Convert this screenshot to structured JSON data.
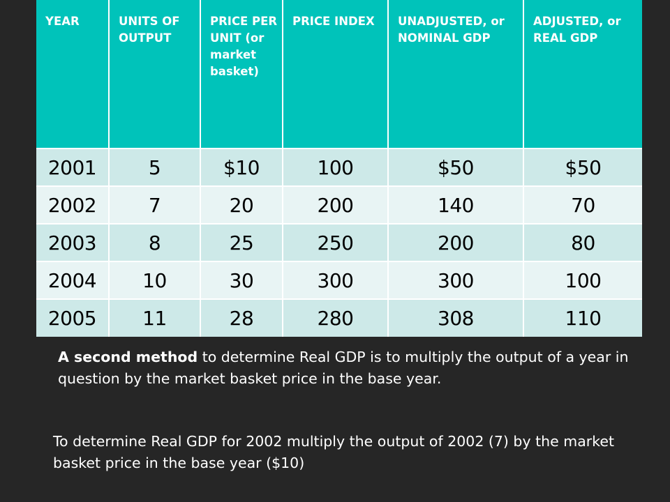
{
  "table": {
    "headers": [
      "YEAR",
      "UNITS OF OUTPUT",
      "PRICE PER UNIT (or market basket)",
      "PRICE INDEX",
      "UNADJUSTED, or NOMINAL GDP",
      "ADJUSTED, or REAL GDP"
    ],
    "rows": [
      [
        "2001",
        "5",
        "$10",
        "100",
        "$50",
        "$50"
      ],
      [
        "2002",
        "7",
        "20",
        "200",
        "140",
        "70"
      ],
      [
        "2003",
        "8",
        "25",
        "250",
        "200",
        "80"
      ],
      [
        "2004",
        "10",
        "30",
        "300",
        "300",
        "100"
      ],
      [
        "2005",
        "11",
        "28",
        "280",
        "308",
        "110"
      ]
    ],
    "colors": {
      "header_bg": "#00c3ba",
      "row_dark": "#cde9e8",
      "row_light": "#e8f4f4"
    }
  },
  "text": {
    "para1_bold": "A second method",
    "para1_rest": " to determine Real GDP is to multiply the output of a year in question by the market basket price in the base year.",
    "para2": "To determine Real GDP for 2002 multiply the output of 2002 (7) by the market basket price in the base year ($10)"
  }
}
